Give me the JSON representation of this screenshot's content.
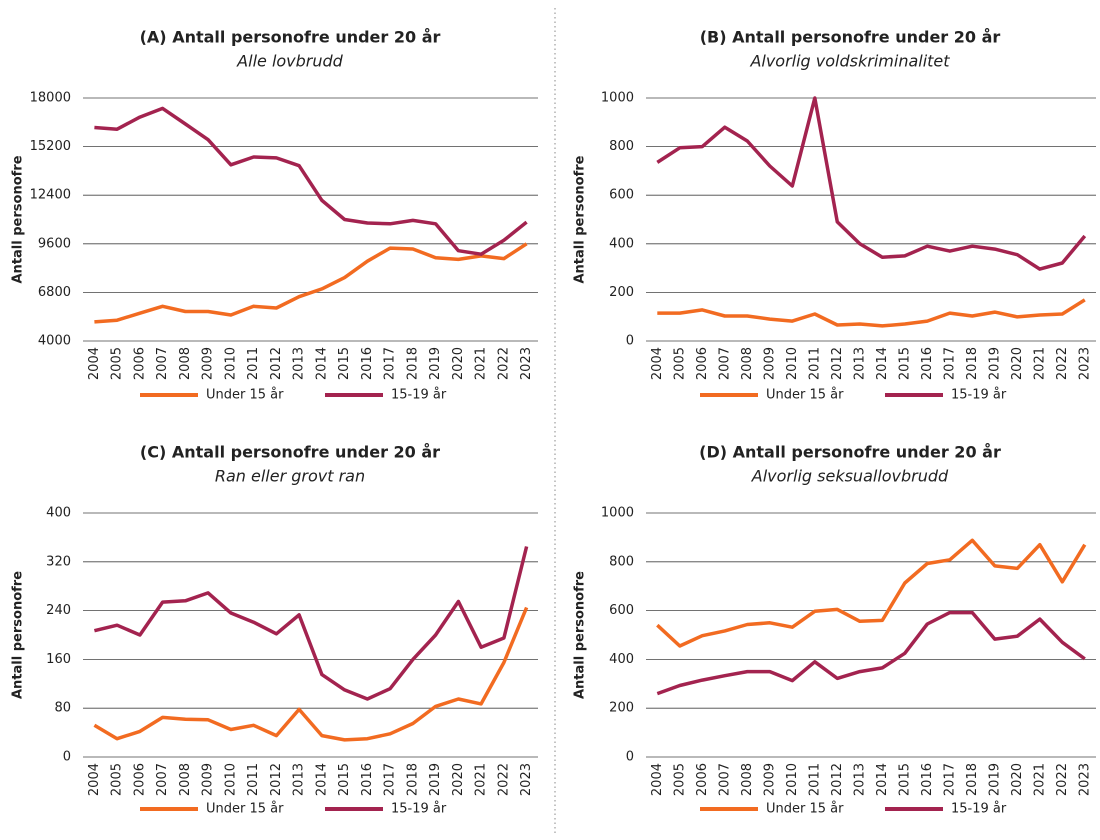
{
  "chart_data": [
    {
      "type": "line",
      "title": "(A) Antall personofre under 20 år",
      "subtitle": "Alle lovbrudd",
      "y_label": "Antall personofre",
      "categories": [
        "2004",
        "2005",
        "2006",
        "2007",
        "2008",
        "2009",
        "2010",
        "2011",
        "2012",
        "2013",
        "2014",
        "2015",
        "2016",
        "2017",
        "2018",
        "2019",
        "2020",
        "2021",
        "2022",
        "2023"
      ],
      "series": [
        {
          "name": "Under 15 år",
          "color": "#f26b21",
          "values": [
            5100,
            5200,
            5600,
            6000,
            5700,
            5700,
            5500,
            6000,
            5900,
            6550,
            7000,
            7650,
            8600,
            9350,
            9300,
            8800,
            8700,
            8900,
            8750,
            9600
          ]
        },
        {
          "name": "15-19 år",
          "color": "#a3234f",
          "values": [
            16300,
            16200,
            16900,
            17400,
            16500,
            15600,
            14150,
            14600,
            14550,
            14100,
            12100,
            11000,
            10800,
            10750,
            10950,
            10750,
            9200,
            9000,
            9800,
            10850
          ]
        }
      ],
      "ylim": [
        4000,
        18000
      ],
      "yticks": [
        4000,
        6800,
        9600,
        12400,
        15200,
        18000
      ],
      "grid": true
    },
    {
      "type": "line",
      "title": "(B) Antall personofre under 20 år",
      "subtitle": "Alvorlig voldskriminalitet",
      "y_label": "Antall personofre",
      "categories": [
        "2004",
        "2005",
        "2006",
        "2007",
        "2008",
        "2009",
        "2010",
        "2011",
        "2012",
        "2013",
        "2014",
        "2015",
        "2016",
        "2017",
        "2018",
        "2019",
        "2020",
        "2021",
        "2022",
        "2023"
      ],
      "series": [
        {
          "name": "Under 15 år",
          "color": "#f26b21",
          "values": [
            115,
            115,
            128,
            103,
            103,
            90,
            82,
            111,
            66,
            70,
            62,
            70,
            82,
            115,
            103,
            119,
            99,
            107,
            111,
            169
          ]
        },
        {
          "name": "15-19 år",
          "color": "#a3234f",
          "values": [
            735,
            795,
            800,
            880,
            823,
            720,
            638,
            1000,
            490,
            400,
            345,
            350,
            390,
            370,
            390,
            378,
            355,
            296,
            321,
            432
          ]
        }
      ],
      "ylim": [
        0,
        1000
      ],
      "yticks": [
        0,
        200,
        400,
        600,
        800,
        1000
      ],
      "grid": true
    },
    {
      "type": "line",
      "title": "(C) Antall personofre under 20 år",
      "subtitle": "Ran eller grovt ran",
      "y_label": "Antall personofre",
      "categories": [
        "2004",
        "2005",
        "2006",
        "2007",
        "2008",
        "2009",
        "2010",
        "2011",
        "2012",
        "2013",
        "2014",
        "2015",
        "2016",
        "2017",
        "2018",
        "2019",
        "2020",
        "2021",
        "2022",
        "2023"
      ],
      "series": [
        {
          "name": "Under 15 år",
          "color": "#f26b21",
          "values": [
            52,
            30,
            42,
            65,
            62,
            61,
            45,
            52,
            35,
            78,
            35,
            28,
            30,
            38,
            55,
            83,
            95,
            87,
            155,
            245
          ]
        },
        {
          "name": "15-19 år",
          "color": "#a3234f",
          "values": [
            207,
            216,
            200,
            254,
            256,
            269,
            236,
            221,
            202,
            233,
            135,
            110,
            95,
            112,
            160,
            200,
            255,
            180,
            195,
            345
          ]
        }
      ],
      "ylim": [
        0,
        400
      ],
      "yticks": [
        0,
        80,
        160,
        240,
        320,
        400
      ],
      "grid": true
    },
    {
      "type": "line",
      "title": "(D) Antall personofre under 20 år",
      "subtitle": "Alvorlig seksuallovbrudd",
      "y_label": "Antall personofre",
      "categories": [
        "2004",
        "2005",
        "2006",
        "2007",
        "2008",
        "2009",
        "2010",
        "2011",
        "2012",
        "2013",
        "2014",
        "2015",
        "2016",
        "2017",
        "2018",
        "2019",
        "2020",
        "2021",
        "2022",
        "2023"
      ],
      "series": [
        {
          "name": "Under 15 år",
          "color": "#f26b21",
          "values": [
            540,
            455,
            497,
            517,
            543,
            550,
            532,
            597,
            605,
            556,
            560,
            713,
            793,
            808,
            888,
            783,
            773,
            870,
            718,
            870
          ]
        },
        {
          "name": "15-19 år",
          "color": "#a3234f",
          "values": [
            260,
            293,
            315,
            333,
            350,
            350,
            313,
            390,
            322,
            350,
            365,
            425,
            545,
            592,
            592,
            483,
            495,
            565,
            470,
            402
          ]
        }
      ],
      "ylim": [
        0,
        1000
      ],
      "yticks": [
        0,
        200,
        400,
        600,
        800,
        1000
      ],
      "grid": true
    }
  ]
}
